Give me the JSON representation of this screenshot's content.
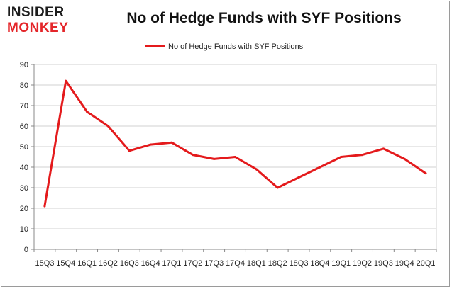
{
  "logo": {
    "top_text": "INSIDER",
    "bottom_text": "MONKEY"
  },
  "colors": {
    "line": "#e41a1c",
    "grid": "#d0d0d0",
    "axis": "#888888",
    "logo_red": "#e4262a"
  },
  "chart_data": {
    "type": "line",
    "title": "No of Hedge Funds with SYF Positions",
    "xlabel": "",
    "ylabel": "",
    "ylim": [
      0,
      90
    ],
    "yticks": [
      0,
      10,
      20,
      30,
      40,
      50,
      60,
      70,
      80,
      90
    ],
    "grid": true,
    "legend_position": "top-center",
    "categories": [
      "15Q3",
      "15Q4",
      "16Q1",
      "16Q2",
      "16Q3",
      "16Q4",
      "17Q1",
      "17Q2",
      "17Q3",
      "17Q4",
      "18Q1",
      "18Q2",
      "18Q3",
      "18Q4",
      "19Q1",
      "19Q2",
      "19Q3",
      "19Q4",
      "20Q1"
    ],
    "series": [
      {
        "name": "No of Hedge Funds with SYF Positions",
        "values": [
          21,
          82,
          67,
          60,
          48,
          51,
          52,
          46,
          44,
          45,
          39,
          30,
          35,
          40,
          45,
          46,
          49,
          44,
          37
        ]
      }
    ]
  }
}
